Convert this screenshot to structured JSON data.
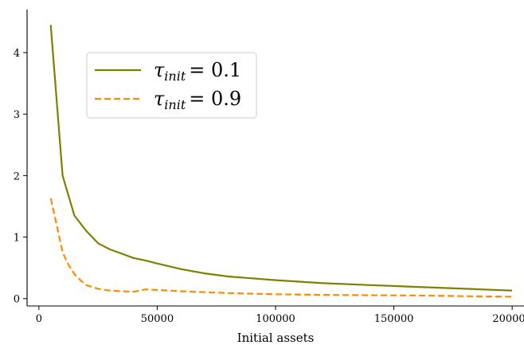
{
  "chart_data": {
    "type": "line",
    "title": "",
    "xlabel": "Initial assets",
    "ylabel": "",
    "xlim": [
      -5000,
      205000
    ],
    "ylim": [
      -0.12,
      4.7
    ],
    "xticks": [
      0,
      50000,
      100000,
      150000,
      200000
    ],
    "xtick_labels": [
      "0",
      "50000",
      "100000",
      "150000",
      "200000"
    ],
    "yticks": [
      0,
      1,
      2,
      3,
      4
    ],
    "ytick_labels": [
      "0",
      "1",
      "2",
      "3",
      "4"
    ],
    "grid": false,
    "legend_placement": "upper-left",
    "series": [
      {
        "name": "τinit = 0.1",
        "legend_symbol": "τ",
        "legend_subscript": "init",
        "legend_value": "= 0.1",
        "color": "#808000",
        "style": "solid",
        "x": [
          5000,
          10000,
          15000,
          20000,
          25000,
          30000,
          35000,
          40000,
          45000,
          50000,
          60000,
          70000,
          80000,
          90000,
          100000,
          120000,
          140000,
          160000,
          180000,
          200000
        ],
        "y": [
          4.45,
          2.0,
          1.35,
          1.1,
          0.9,
          0.8,
          0.73,
          0.66,
          0.62,
          0.57,
          0.48,
          0.41,
          0.36,
          0.33,
          0.3,
          0.25,
          0.22,
          0.19,
          0.16,
          0.13
        ]
      },
      {
        "name": "τinit = 0.9",
        "legend_symbol": "τ",
        "legend_subscript": "init",
        "legend_value": "= 0.9",
        "color": "#ff8c00",
        "style": "dashed",
        "x": [
          5000,
          7500,
          10000,
          12500,
          15000,
          17500,
          20000,
          25000,
          30000,
          35000,
          40000,
          42500,
          45000,
          50000,
          60000,
          80000,
          100000,
          120000,
          140000,
          160000,
          180000,
          200000
        ],
        "y": [
          1.63,
          1.2,
          0.75,
          0.55,
          0.4,
          0.3,
          0.22,
          0.16,
          0.13,
          0.12,
          0.11,
          0.13,
          0.15,
          0.14,
          0.12,
          0.09,
          0.07,
          0.06,
          0.055,
          0.05,
          0.04,
          0.03
        ]
      }
    ]
  }
}
